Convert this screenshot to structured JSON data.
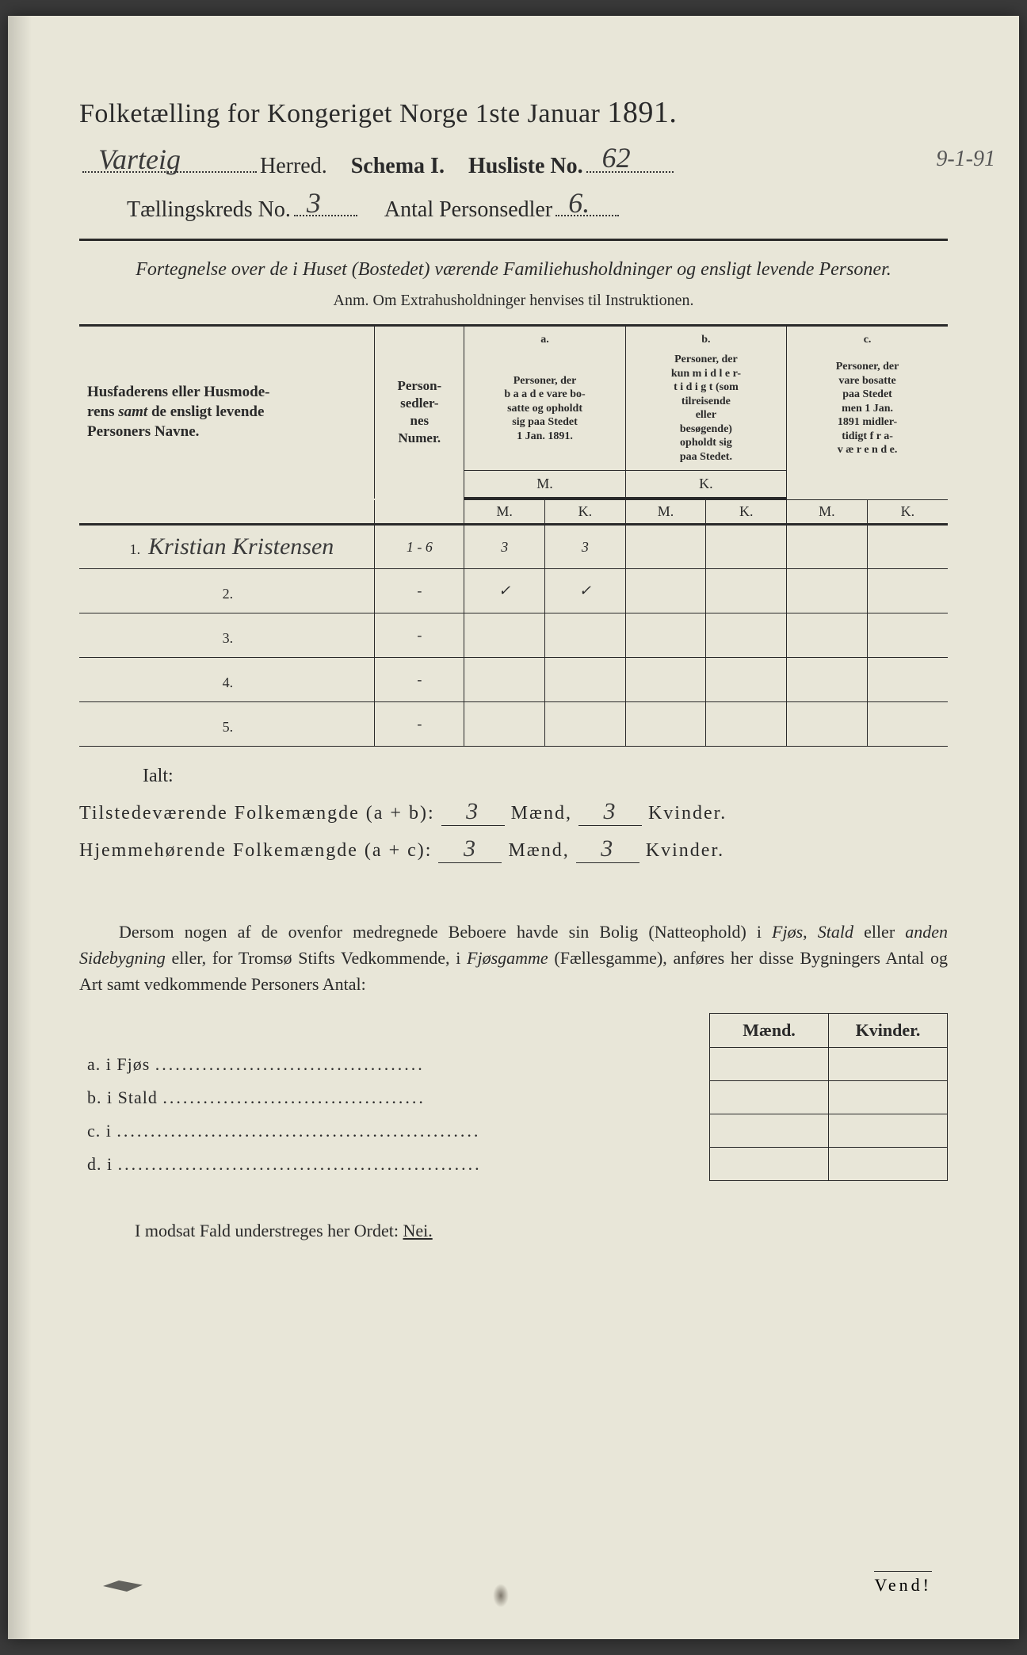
{
  "title": {
    "main": "Folketælling for Kongeriget Norge 1ste Januar",
    "year": "1891."
  },
  "header": {
    "herred_value": "Varteig",
    "herred_label": "Herred.",
    "schema_label": "Schema I.",
    "husliste_label": "Husliste No.",
    "husliste_value": "62",
    "margin_date": "9-1-91",
    "kreds_label": "Tællingskreds No.",
    "kreds_value": "3",
    "personsedler_label": "Antal Personsedler",
    "personsedler_value": "6."
  },
  "subtitle": "Fortegnelse over de i Huset (Bostedet) værende Familiehusholdninger og ensligt levende Personer.",
  "anm": "Anm.  Om Extrahusholdninger henvises til Instruktionen.",
  "table": {
    "col_names": "Husfaderens eller Husmoderens samt de ensligt levende Personers Navne.",
    "col_numer": "Person-\nsedler-\nnes\nNumer.",
    "col_a_label": "a.",
    "col_a": "Personer, der b a a d e vare bosatte og opholdt sig paa Stedet 1 Jan. 1891.",
    "col_b_label": "b.",
    "col_b": "Personer, der kun m i d l e r t i d i g t (som tilreisende eller besøgende) opholdt sig paa Stedet.",
    "col_c_label": "c.",
    "col_c": "Personer, der vare bosatte paa Stedet men 1 Jan. 1891 midlertidigt f r a - v æ r e n d e.",
    "mk_m": "M.",
    "mk_k": "K.",
    "rows": [
      {
        "n": "1.",
        "name": "Kristian Kristensen",
        "numer": "1 - 6",
        "am": "3",
        "ak": "3",
        "bm": "",
        "bk": "",
        "cm": "",
        "ck": ""
      },
      {
        "n": "2.",
        "name": "",
        "numer": "-",
        "am": "✓",
        "ak": "✓",
        "bm": "",
        "bk": "",
        "cm": "",
        "ck": ""
      },
      {
        "n": "3.",
        "name": "",
        "numer": "-",
        "am": "",
        "ak": "",
        "bm": "",
        "bk": "",
        "cm": "",
        "ck": ""
      },
      {
        "n": "4.",
        "name": "",
        "numer": "-",
        "am": "",
        "ak": "",
        "bm": "",
        "bk": "",
        "cm": "",
        "ck": ""
      },
      {
        "n": "5.",
        "name": "",
        "numer": "-",
        "am": "",
        "ak": "",
        "bm": "",
        "bk": "",
        "cm": "",
        "ck": ""
      }
    ]
  },
  "ialt": "Ialt:",
  "totals": {
    "line1_label": "Tilstedeværende Folkemængde (a + b):",
    "line1_m": "3",
    "line1_maend": "Mænd,",
    "line1_k": "3",
    "line1_kvinder": "Kvinder.",
    "line2_label": "Hjemmehørende Folkemængde (a + c):",
    "line2_m": "3",
    "line2_maend": "Mænd,",
    "line2_k": "3",
    "line2_kvinder": "Kvinder."
  },
  "paragraph": "Dersom nogen af de ovenfor medregnede Beboere havde sin Bolig (Natteophold) i Fjøs, Stald eller anden Sidebygning eller, for Tromsø Stifts Vedkommende, i Fjøsgamme (Fællesgamme), anføres her disse Bygningers Antal og Art samt vedkommende Personers Antal:",
  "mk": {
    "maend": "Mænd.",
    "kvinder": "Kvinder.",
    "rows": [
      {
        "lbl": "a.  i      Fjøs",
        "dots": "........................................"
      },
      {
        "lbl": "b.  i      Stald",
        "dots": "......................................."
      },
      {
        "lbl": "c.  i",
        "dots": "......................................................"
      },
      {
        "lbl": "d.  i",
        "dots": "......................................................"
      }
    ]
  },
  "nei": "I modsat Fald understreges her Ordet:",
  "nei_word": "Nei.",
  "vend": "Vend!",
  "colors": {
    "paper": "#e8e6d8",
    "ink": "#2a2a2a",
    "hand": "#3a3a3a",
    "bg": "#3a3a3a"
  }
}
